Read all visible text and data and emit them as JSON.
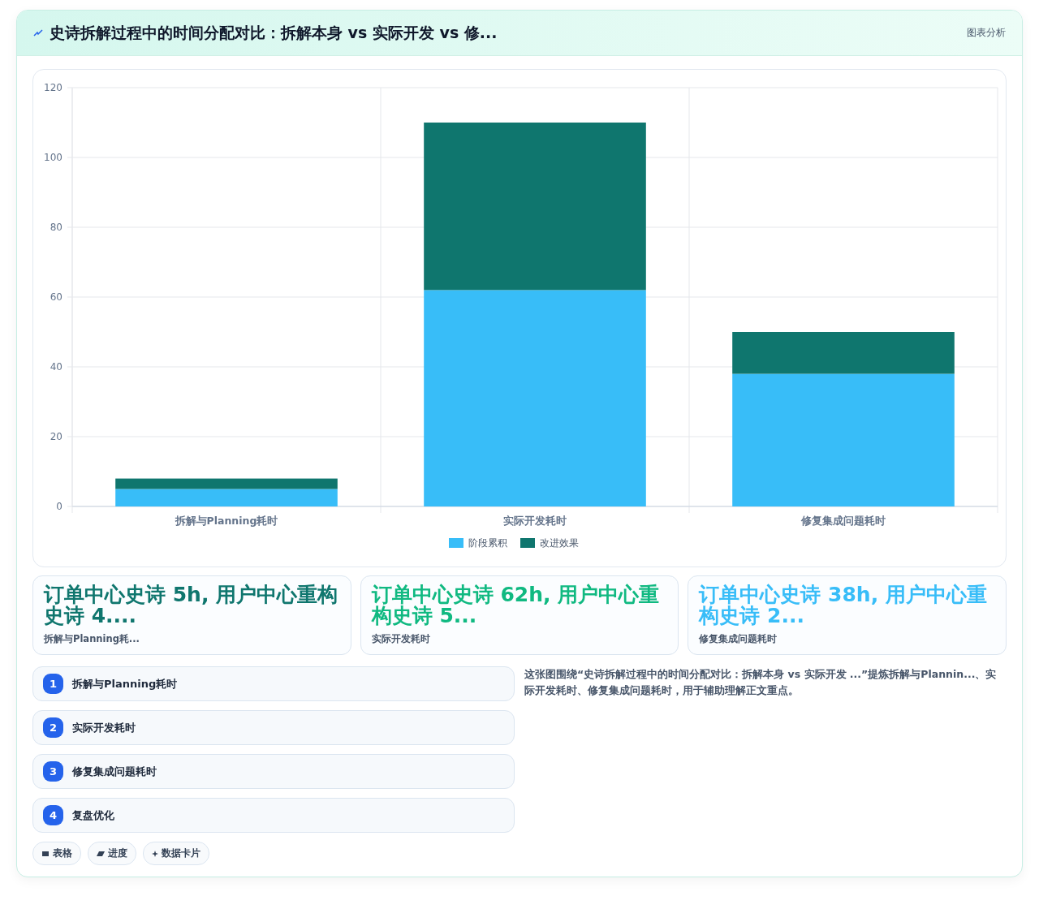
{
  "chart_data": {
    "type": "bar",
    "title": "史诗拆解过程中的时间分配对比：拆解本身 vs 实际开发 vs 修...",
    "categories": [
      "拆解与Planning耗时",
      "实际开发耗时",
      "修复集成问题耗时"
    ],
    "stacked": true,
    "series": [
      {
        "name": "阶段累积",
        "color": "#38bdf8",
        "values": [
          5,
          62,
          38
        ]
      },
      {
        "name": "改进效果",
        "color": "#0f766e",
        "values": [
          3,
          48,
          12
        ]
      }
    ],
    "ylim": [
      0,
      120
    ],
    "yticks": [
      0,
      20,
      40,
      60,
      80,
      100,
      120
    ],
    "grid": true,
    "legend": "bottom",
    "annotations": [
      "图表分析",
      "订单中心史诗 5h, 用户中心重构史诗 4....",
      "拆解与Planning耗...",
      "订单中心史诗 62h, 用户中心重构史诗 5...",
      "实际开发耗时",
      "订单中心史诗 38h, 用户中心重构史诗 2...",
      "修复集成问题耗时",
      "1",
      "拆解与Planning耗时",
      "2",
      "实际开发耗时",
      "3",
      "修复集成问题耗时",
      "4",
      "复盘优化",
      "这张图围绕“史诗拆解过程中的时间分配对比：拆解本身 vs 实际开发 ...”提炼拆解与Plannin...、实际开发耗时、修复集成问题耗时，用于辅助理解正文重点。",
      "表格",
      "进度",
      "数据卡片"
    ]
  }
}
